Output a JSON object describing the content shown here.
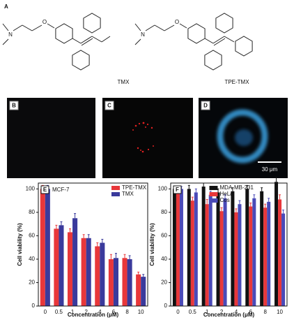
{
  "panel_labels": {
    "a": "A",
    "b": "B",
    "c": "C",
    "d": "D"
  },
  "structures": [
    "TMX",
    "TPE-TMX"
  ],
  "scale_bar": "30 μm",
  "chart_data": [
    {
      "type": "bar",
      "panel": "E",
      "annotation": "MCF-7",
      "x_label": "Concentration (μM)",
      "y_label": "Cell viability (%)",
      "categories": [
        "0",
        "0.5",
        "1",
        "2",
        "4",
        "6",
        "8",
        "10"
      ],
      "series": [
        {
          "name": "TPE-TMX",
          "color": "#e8373a",
          "values": [
            100,
            66,
            63,
            58,
            51,
            40,
            41,
            27
          ],
          "errors": [
            3,
            3,
            3,
            3,
            3,
            4,
            3,
            2
          ]
        },
        {
          "name": "TMX",
          "color": "#3a3a9c",
          "values": [
            100,
            69,
            75,
            58,
            54,
            41,
            40,
            25
          ],
          "errors": [
            3,
            3,
            4,
            3,
            3,
            4,
            3,
            2
          ]
        }
      ],
      "ylim": [
        0,
        105
      ],
      "yticks": [
        0,
        20,
        40,
        60,
        80,
        100
      ],
      "legend": "upper right"
    },
    {
      "type": "bar",
      "panel": "F",
      "x_label": "Concentration (μM)",
      "y_label": "Cell viability (%)",
      "categories": [
        "0",
        "0.5",
        "1",
        "2",
        "4",
        "6",
        "8",
        "10"
      ],
      "series": [
        {
          "name": "MDA-MB-231",
          "color": "#111111",
          "values": [
            100,
            100,
            102,
            97,
            98,
            100,
            98,
            106
          ],
          "errors": [
            2,
            3,
            3,
            3,
            3,
            3,
            3,
            4
          ]
        },
        {
          "name": "HeLa",
          "color": "#e8373a",
          "values": [
            100,
            90,
            87,
            81,
            80,
            85,
            84,
            91
          ],
          "errors": [
            2,
            3,
            4,
            3,
            3,
            3,
            3,
            4
          ]
        },
        {
          "name": "Cos 7",
          "color": "#4a4ab8",
          "values": [
            100,
            97,
            95,
            92,
            87,
            92,
            89,
            79
          ],
          "errors": [
            2,
            3,
            3,
            3,
            3,
            3,
            3,
            3
          ]
        }
      ],
      "ylim": [
        0,
        105
      ],
      "yticks": [
        0,
        20,
        40,
        60,
        80,
        100
      ],
      "legend": "upper center"
    }
  ]
}
